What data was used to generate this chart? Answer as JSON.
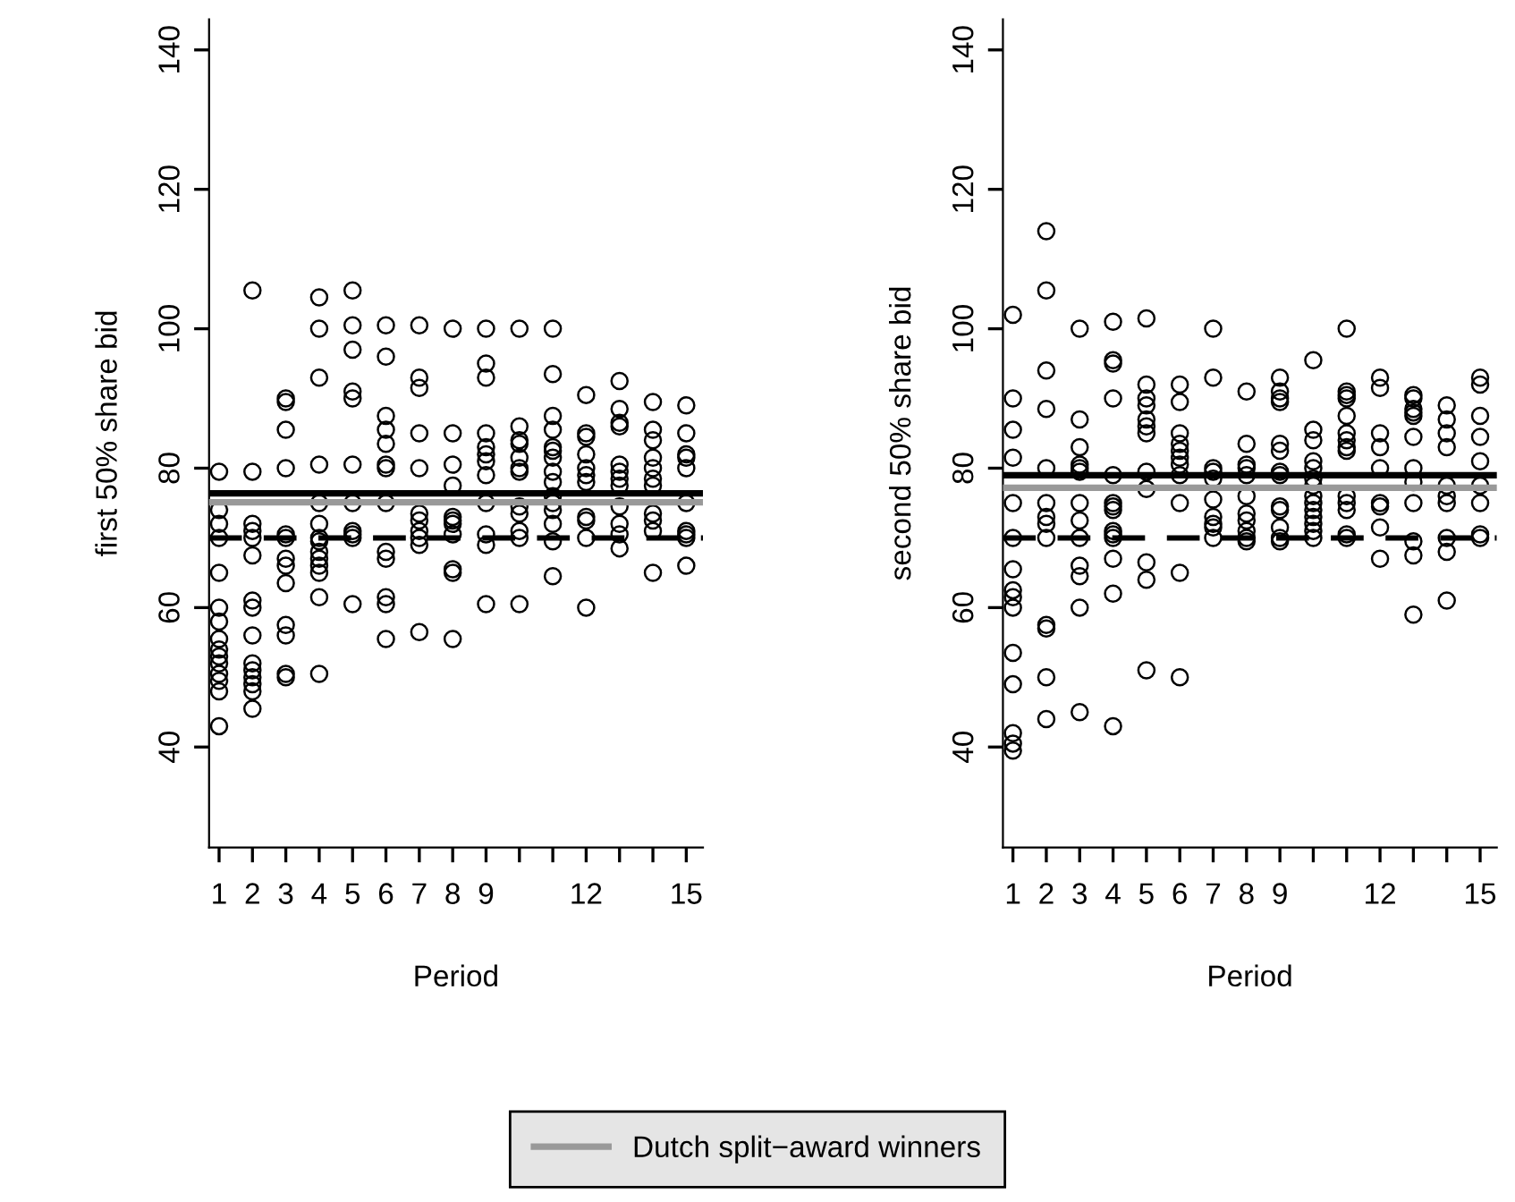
{
  "chart_data": [
    {
      "type": "scatter",
      "xlabel": "Period",
      "ylabel": "first 50% share bid",
      "marker": "circle",
      "grid": false,
      "legend": "bottom",
      "xlim": [
        0.7,
        15.5
      ],
      "ylim": [
        25.6,
        144.4
      ],
      "yticks": [
        40,
        60,
        80,
        100,
        120,
        140
      ],
      "xticks": [
        1,
        2,
        3,
        4,
        5,
        6,
        7,
        8,
        9,
        {
          "value": 10,
          "label": null
        },
        {
          "value": 11,
          "label": null
        },
        12,
        {
          "value": 13,
          "label": null
        },
        {
          "value": 14,
          "label": null
        },
        15
      ],
      "ref_lines": [
        {
          "axis": "y",
          "value": 76.4,
          "color": "#000000",
          "line_style": "solid"
        },
        {
          "axis": "y",
          "value": 75.1,
          "label": "Dutch split−award winners",
          "color": "#999999",
          "line_style": "solid"
        },
        {
          "axis": "y",
          "value": 70,
          "color": "#000000",
          "line_style": "dashed"
        }
      ],
      "series": [
        {
          "color": "#000000",
          "x": [
            1,
            1,
            1,
            1,
            1,
            1,
            1,
            1,
            1,
            1,
            1,
            1,
            1,
            1,
            1,
            2,
            2,
            2,
            2,
            2,
            2,
            2,
            2,
            2,
            2,
            2,
            2,
            2,
            2,
            2,
            3,
            3,
            3,
            3,
            3,
            3,
            3,
            3,
            3,
            3,
            3,
            3,
            3,
            4,
            4,
            4,
            4,
            4,
            4,
            4,
            4,
            4,
            4,
            4,
            4,
            4,
            4,
            5,
            5,
            5,
            5,
            5,
            5,
            5,
            5,
            5,
            5,
            5,
            6,
            6,
            6,
            6,
            6,
            6,
            6,
            6,
            6,
            6,
            6,
            6,
            6,
            7,
            7,
            7,
            7,
            7,
            7,
            7,
            7,
            7,
            7,
            7,
            8,
            8,
            8,
            8,
            8,
            8,
            8,
            8,
            8,
            8,
            8,
            9,
            9,
            9,
            9,
            9,
            9,
            9,
            9,
            9,
            9,
            9,
            9,
            10,
            10,
            10,
            10,
            10,
            10,
            10,
            10,
            10,
            10,
            10,
            10,
            11,
            11,
            11,
            11,
            11,
            11,
            11,
            11,
            11,
            11,
            11,
            11,
            11,
            11,
            11,
            12,
            12,
            12,
            12,
            12,
            12,
            12,
            12,
            12,
            12,
            12,
            13,
            13,
            13,
            13,
            13,
            13,
            13,
            13,
            13,
            13,
            13,
            13,
            14,
            14,
            14,
            14,
            14,
            14,
            14,
            14,
            14,
            14,
            14,
            15,
            15,
            15,
            15,
            15,
            15,
            15,
            15,
            15,
            15
          ],
          "values": [
            79.5,
            74,
            72,
            70,
            65,
            60,
            58,
            55.5,
            54,
            53,
            52,
            50.5,
            49.5,
            48,
            43,
            105.5,
            79.5,
            72,
            71,
            70,
            67.5,
            61,
            60,
            56,
            52,
            51,
            50,
            49,
            48,
            45.5,
            90,
            89.5,
            85.5,
            80,
            70.5,
            70,
            67,
            66,
            63.5,
            57.5,
            56,
            50.5,
            50,
            104.5,
            100,
            93,
            80.5,
            75,
            72,
            70,
            69.5,
            68,
            67,
            66,
            65,
            61.5,
            50.5,
            105.5,
            100.5,
            97,
            91,
            90,
            80.5,
            75,
            71,
            70.5,
            70,
            60.5,
            100.5,
            96,
            87.5,
            85.5,
            83.5,
            80.5,
            80,
            75,
            68,
            67,
            61.5,
            60.5,
            55.5,
            100.5,
            93,
            91.5,
            85,
            80,
            73.5,
            72.5,
            71,
            70,
            69,
            56.5,
            100,
            85,
            80.5,
            77.5,
            73,
            72.5,
            72,
            70.5,
            65.5,
            65,
            55.5,
            100,
            95,
            93,
            85,
            83,
            82,
            81,
            79,
            75,
            70.5,
            69,
            60.5,
            100,
            86,
            84,
            83.5,
            81.5,
            80,
            79.5,
            74.5,
            73.5,
            71,
            70,
            60.5,
            100,
            93.5,
            87.5,
            85.5,
            83,
            82.5,
            81.5,
            79.5,
            78,
            76,
            75,
            74,
            72,
            69.5,
            64.5,
            90.5,
            85,
            84.5,
            82,
            80,
            79,
            78,
            73,
            72.5,
            70,
            60,
            92.5,
            88.5,
            86.5,
            86,
            80.5,
            79.5,
            78.5,
            77.5,
            74.5,
            72,
            70.5,
            68.5,
            89.5,
            85.5,
            84,
            81.5,
            80,
            78.5,
            77.5,
            73.5,
            72.5,
            71,
            65,
            89,
            85,
            82,
            81.5,
            80,
            75,
            71,
            70.5,
            70,
            66
          ]
        }
      ]
    },
    {
      "type": "scatter",
      "xlabel": "Period",
      "ylabel": "second 50% share bid",
      "marker": "circle",
      "grid": false,
      "xlim": [
        0.7,
        15.5
      ],
      "ylim": [
        25.6,
        144.4
      ],
      "yticks": [
        40,
        60,
        80,
        100,
        120,
        140
      ],
      "xticks": [
        1,
        2,
        3,
        4,
        5,
        6,
        7,
        8,
        9,
        {
          "value": 10,
          "label": null
        },
        {
          "value": 11,
          "label": null
        },
        12,
        {
          "value": 13,
          "label": null
        },
        {
          "value": 14,
          "label": null
        },
        15
      ],
      "ref_lines": [
        {
          "axis": "y",
          "value": 79.0,
          "color": "#000000",
          "line_style": "solid"
        },
        {
          "axis": "y",
          "value": 77.2,
          "color": "#999999",
          "line_style": "solid"
        },
        {
          "axis": "y",
          "value": 70,
          "color": "#000000",
          "line_style": "dashed"
        }
      ],
      "series": [
        {
          "color": "#000000",
          "x": [
            1,
            1,
            1,
            1,
            1,
            1,
            1,
            1,
            1,
            1,
            1,
            1,
            1,
            1,
            1,
            2,
            2,
            2,
            2,
            2,
            2,
            2,
            2,
            2,
            2,
            2,
            2,
            2,
            3,
            3,
            3,
            3,
            3,
            3,
            3,
            3,
            3,
            3,
            3,
            3,
            3,
            4,
            4,
            4,
            4,
            4,
            4,
            4,
            4,
            4,
            4,
            4,
            4,
            4,
            4,
            5,
            5,
            5,
            5,
            5,
            5,
            5,
            5,
            5,
            5,
            5,
            5,
            6,
            6,
            6,
            6,
            6,
            6,
            6,
            6,
            6,
            6,
            6,
            7,
            7,
            7,
            7,
            7,
            7,
            7,
            7,
            7,
            7,
            8,
            8,
            8,
            8,
            8,
            8,
            8,
            8,
            8,
            8,
            8,
            9,
            9,
            9,
            9,
            9,
            9,
            9,
            9,
            9,
            9,
            9,
            9,
            9,
            10,
            10,
            10,
            10,
            10,
            10,
            10,
            10,
            10,
            10,
            10,
            10,
            10,
            10,
            11,
            11,
            11,
            11,
            11,
            11,
            11,
            11,
            11,
            11,
            11,
            11,
            11,
            11,
            12,
            12,
            12,
            12,
            12,
            12,
            12,
            12,
            12,
            13,
            13,
            13,
            13,
            13,
            13,
            13,
            13,
            13,
            13,
            13,
            13,
            14,
            14,
            14,
            14,
            14,
            14,
            14,
            14,
            14,
            14,
            15,
            15,
            15,
            15,
            15,
            15,
            15,
            15,
            15
          ],
          "values": [
            102,
            90,
            85.5,
            81.5,
            75,
            70,
            65.5,
            62.5,
            61.5,
            60,
            53.5,
            49,
            42,
            40.5,
            39.5,
            114,
            105.5,
            94,
            88.5,
            80,
            75,
            73,
            72,
            70,
            57.5,
            57,
            50,
            44,
            100,
            87,
            83,
            80.5,
            80,
            79.5,
            75,
            72.5,
            70,
            66,
            64.5,
            60,
            45,
            101,
            95.5,
            95,
            90,
            79,
            75,
            74.5,
            74,
            71,
            70.5,
            70,
            67,
            62,
            43,
            101.5,
            92,
            90,
            89,
            87,
            86,
            85,
            79.5,
            77,
            66.5,
            64,
            51,
            92,
            89.5,
            85,
            83.5,
            82.5,
            81.5,
            80.5,
            79,
            75,
            65,
            50,
            100,
            93,
            80,
            79.5,
            78.5,
            75.5,
            73,
            72,
            71.5,
            70,
            91,
            83.5,
            80.5,
            80,
            79,
            76,
            73.5,
            72.5,
            71,
            70,
            69.5,
            93,
            91,
            90,
            89.5,
            83.5,
            82.5,
            79.5,
            79,
            74.5,
            74,
            71.5,
            70,
            69.5,
            95.5,
            85.5,
            84,
            81,
            80,
            78.5,
            77.5,
            76,
            75,
            74,
            73,
            72,
            71,
            70,
            100,
            91,
            90.5,
            90,
            87.5,
            85,
            84,
            83,
            82.5,
            76,
            75,
            74,
            70.5,
            70,
            93,
            91.5,
            85,
            83,
            80,
            75,
            74.5,
            71.5,
            67,
            90.5,
            90,
            88.5,
            88,
            87.5,
            84.5,
            80,
            78,
            75,
            69.5,
            67.5,
            59,
            89,
            87,
            85,
            83,
            77.5,
            76,
            75,
            70,
            68,
            61,
            93,
            92,
            87.5,
            84.5,
            81,
            77.5,
            75,
            70.5,
            70
          ]
        }
      ]
    }
  ]
}
